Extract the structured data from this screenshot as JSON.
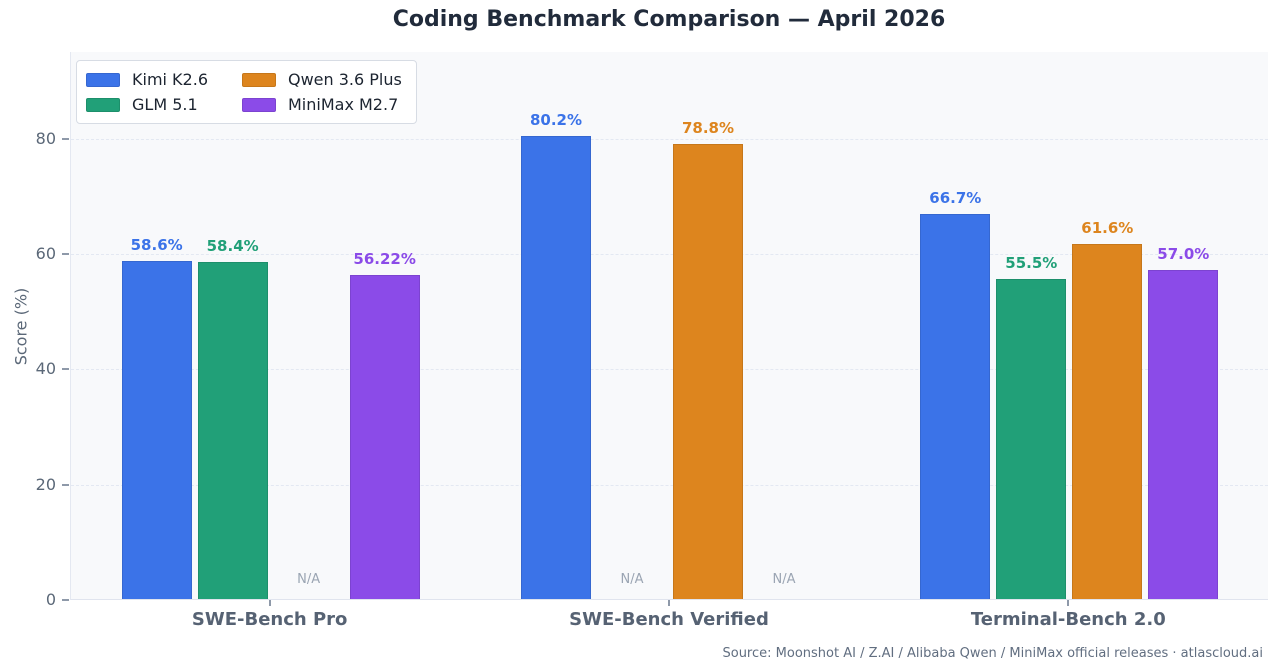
{
  "source_note": "Source: Moonshot AI / Z.AI / Alibaba Qwen / MiniMax official releases · atlascloud.ai",
  "na_label": "N/A",
  "chart_data": {
    "type": "bar",
    "title": "Coding Benchmark Comparison — April 2026",
    "xlabel": "",
    "ylabel": "Score (%)",
    "ylim": [
      0,
      95
    ],
    "yticks": [
      0,
      20,
      40,
      60,
      80
    ],
    "grid": true,
    "legend_position": "upper left",
    "plot_background": "#f8f9fb",
    "categories": [
      "SWE-Bench Pro",
      "SWE-Bench Verified",
      "Terminal-Bench 2.0"
    ],
    "series": [
      {
        "name": "Kimi K2.6",
        "color": "#3b73e8",
        "values": [
          58.6,
          80.2,
          66.7
        ],
        "value_labels": [
          "58.6%",
          "80.2%",
          "66.7%"
        ]
      },
      {
        "name": "GLM 5.1",
        "color": "#21a078",
        "values": [
          58.4,
          null,
          55.5
        ],
        "value_labels": [
          "58.4%",
          null,
          "55.5%"
        ]
      },
      {
        "name": "Qwen 3.6 Plus",
        "color": "#dd851e",
        "values": [
          null,
          78.8,
          61.6
        ],
        "value_labels": [
          null,
          "78.8%",
          "61.6%"
        ]
      },
      {
        "name": "MiniMax M2.7",
        "color": "#8b4be8",
        "values": [
          56.22,
          null,
          57.0
        ],
        "value_labels": [
          "56.22%",
          null,
          "57.0%"
        ]
      }
    ]
  }
}
